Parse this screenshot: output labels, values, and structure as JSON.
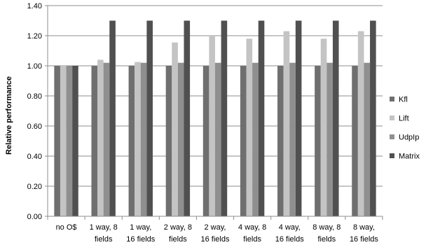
{
  "chart_data": {
    "type": "bar",
    "title": "",
    "xlabel": "",
    "ylabel": "Relative performance",
    "ylim": [
      0,
      1.4
    ],
    "ytick_step": 0.2,
    "yticks": [
      "0.00",
      "0.20",
      "0.40",
      "0.60",
      "0.80",
      "1.00",
      "1.20",
      "1.40"
    ],
    "grid": true,
    "legend_position": "right",
    "categories": [
      [
        "no O$"
      ],
      [
        "1 way, 8",
        "fields"
      ],
      [
        "1 way,",
        "16 fields"
      ],
      [
        "2 way, 8",
        "fields"
      ],
      [
        "2 way,",
        "16 fields"
      ],
      [
        "4 way, 8",
        "fields"
      ],
      [
        "4 way,",
        "16 fields"
      ],
      [
        "8 way, 8",
        "fields"
      ],
      [
        "8 way,",
        "16 fields"
      ]
    ],
    "series": [
      {
        "name": "Kfl",
        "color": "#6f6f6f",
        "values": [
          1.0,
          1.0,
          1.0,
          1.0,
          1.0,
          1.0,
          1.0,
          1.0,
          1.0
        ]
      },
      {
        "name": "Lift",
        "color": "#c4c4c4",
        "values": [
          1.0,
          1.04,
          1.025,
          1.155,
          1.2,
          1.18,
          1.23,
          1.18,
          1.23
        ]
      },
      {
        "name": "UdpIp",
        "color": "#8f8f8f",
        "values": [
          1.0,
          1.02,
          1.02,
          1.02,
          1.02,
          1.02,
          1.02,
          1.02,
          1.02
        ]
      },
      {
        "name": "Matrix",
        "color": "#505050",
        "values": [
          1.0,
          1.3,
          1.3,
          1.3,
          1.3,
          1.3,
          1.3,
          1.3,
          1.3
        ]
      }
    ]
  }
}
